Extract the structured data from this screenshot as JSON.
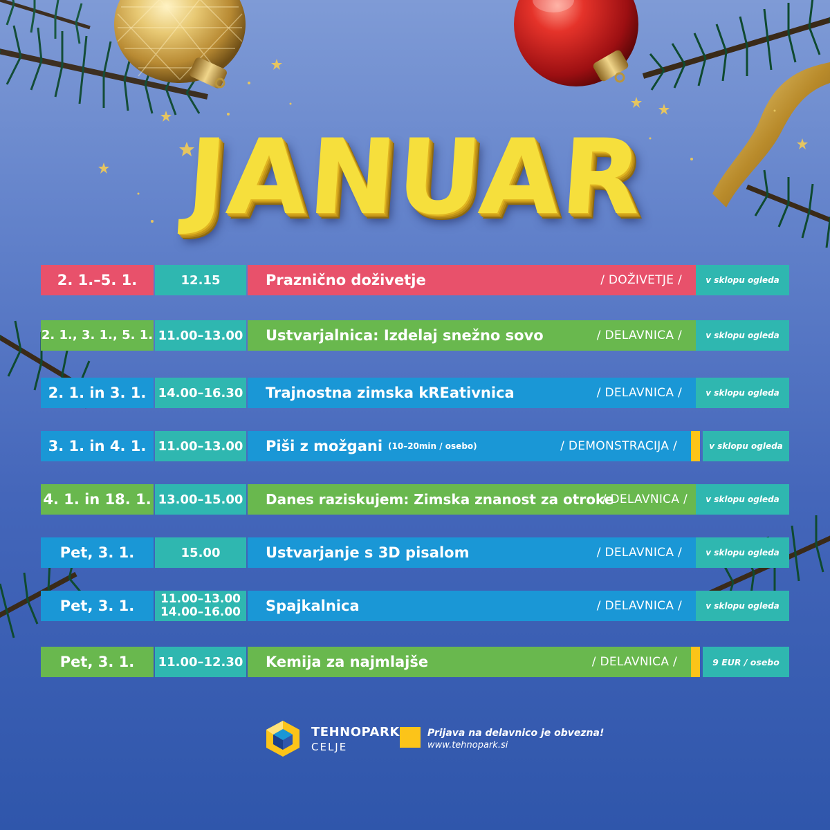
{
  "headline": "JANUAR",
  "colors": {
    "pink": "#e8516b",
    "green": "#69b84e",
    "blue": "#1a97d6",
    "teal": "#2fb7b0",
    "yellow": "#fcc419",
    "title_gold": "#f6df3c"
  },
  "events": [
    {
      "date": "2. 1.–5. 1.",
      "time": "12.15",
      "title": "Praznično doživetje",
      "category": "/ DOŽIVETJE /",
      "price": "v sklopu ogleda",
      "color": "pink",
      "marker": false
    },
    {
      "date": "2. 1., 3. 1., 5. 1.",
      "time": "11.00–13.00",
      "title": "Ustvarjalnica: Izdelaj snežno sovo",
      "category": "/ DELAVNICA /",
      "price": "v sklopu ogleda",
      "color": "green",
      "marker": false
    },
    {
      "date": "2. 1. in 3. 1.",
      "time": "14.00–16.30",
      "title": "Trajnostna zimska kREativnica",
      "category": "/ DELAVNICA /",
      "price": "v sklopu ogleda",
      "color": "blue",
      "marker": false
    },
    {
      "date": "3. 1. in 4. 1.",
      "time": "11.00–13.00",
      "title": "Piši z možgani",
      "title_note": "(10–20min / osebo)",
      "category": "/ DEMONSTRACIJA /",
      "price": "v sklopu ogleda",
      "color": "blue",
      "marker": true
    },
    {
      "date": "4. 1. in 18. 1.",
      "time": "13.00–15.00",
      "title": "Danes raziskujem: Zimska znanost za otroke",
      "category": "/ DELAVNICA /",
      "price": "v sklopu ogleda",
      "color": "green",
      "marker": false
    },
    {
      "date": "Pet, 3. 1.",
      "time": "15.00",
      "title": "Ustvarjanje s 3D pisalom",
      "category": "/ DELAVNICA /",
      "price": "v sklopu ogleda",
      "color": "blue",
      "marker": false
    },
    {
      "date": "Pet, 3. 1.",
      "time_lines": [
        "11.00–13.00",
        "14.00–16.00"
      ],
      "title": "Spajkalnica",
      "category": "/ DELAVNICA /",
      "price": "v sklopu ogleda",
      "color": "blue",
      "marker": false
    },
    {
      "date": "Pet, 3. 1.",
      "time": "11.00–12.30",
      "title": "Kemija za najmlajše",
      "category": "/ DELAVNICA /",
      "price": "9 EUR / osebo",
      "color": "green",
      "marker": true
    }
  ],
  "footer": {
    "logo_name": "TEHNOPARK",
    "logo_city": "CELJE",
    "note": "Prijava na delavnico je obvezna!",
    "url": "www.tehnopark.si"
  }
}
